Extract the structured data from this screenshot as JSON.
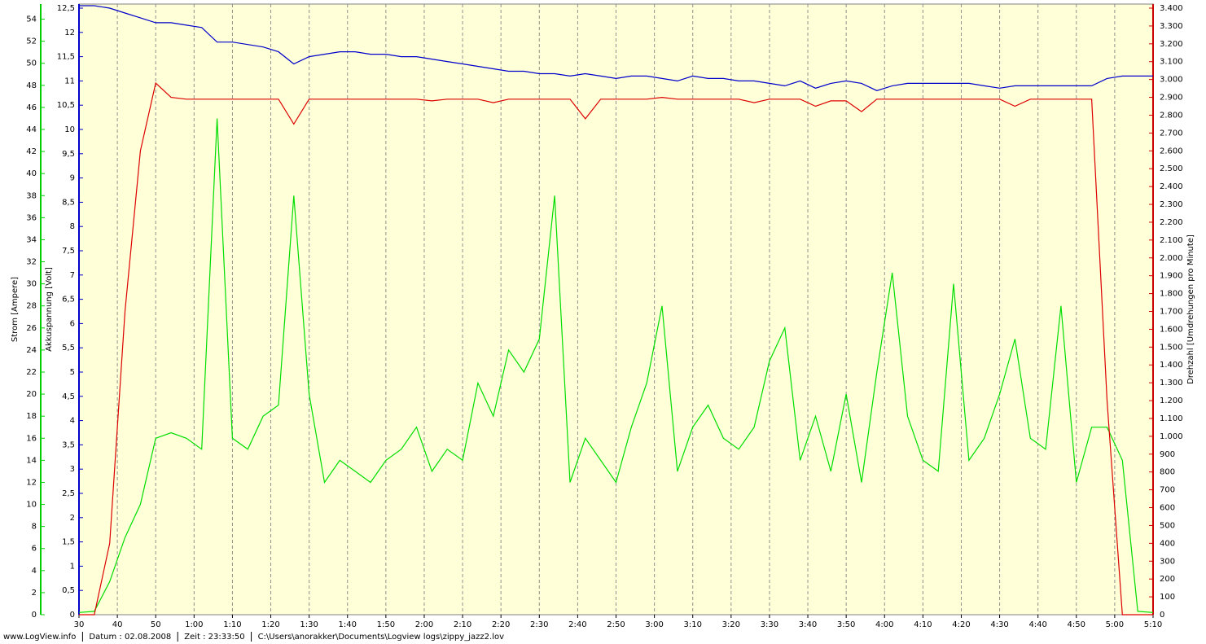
{
  "chart_data": {
    "type": "line",
    "x": [
      30,
      34,
      38,
      42,
      46,
      50,
      54,
      58,
      62,
      66,
      70,
      74,
      78,
      82,
      86,
      90,
      94,
      98,
      102,
      106,
      110,
      114,
      118,
      122,
      126,
      130,
      134,
      138,
      142,
      146,
      150,
      154,
      158,
      162,
      166,
      170,
      174,
      178,
      182,
      186,
      190,
      194,
      198,
      202,
      206,
      210,
      214,
      218,
      222,
      226,
      230,
      234,
      238,
      242,
      246,
      250,
      254,
      258,
      262,
      266,
      270,
      274,
      278,
      282,
      286,
      290,
      294,
      298,
      302,
      306,
      310
    ],
    "xlim": [
      30,
      310
    ],
    "xticks": [
      30,
      40,
      50,
      {
        "value": 60,
        "label": "1:00"
      },
      {
        "value": 70,
        "label": "1:10"
      },
      {
        "value": 80,
        "label": "1:20"
      },
      {
        "value": 90,
        "label": "1:30"
      },
      {
        "value": 100,
        "label": "1:40"
      },
      {
        "value": 110,
        "label": "1:50"
      },
      {
        "value": 120,
        "label": "2:00"
      },
      {
        "value": 130,
        "label": "2:10"
      },
      {
        "value": 140,
        "label": "2:20"
      },
      {
        "value": 150,
        "label": "2:30"
      },
      {
        "value": 160,
        "label": "2:40"
      },
      {
        "value": 170,
        "label": "2:50"
      },
      {
        "value": 180,
        "label": "3:00"
      },
      {
        "value": 190,
        "label": "3:10"
      },
      {
        "value": 200,
        "label": "3:20"
      },
      {
        "value": 210,
        "label": "3:30"
      },
      {
        "value": 220,
        "label": "3:40"
      },
      {
        "value": 230,
        "label": "3:50"
      },
      {
        "value": 240,
        "label": "4:00"
      },
      {
        "value": 250,
        "label": "4:10"
      },
      {
        "value": 260,
        "label": "4:20"
      },
      {
        "value": 270,
        "label": "4:30"
      },
      {
        "value": 280,
        "label": "4:40"
      },
      {
        "value": 290,
        "label": "4:50"
      },
      {
        "value": 300,
        "label": "5:00"
      },
      {
        "value": 310,
        "label": "5:10"
      }
    ],
    "y_label": "Akkuspannung [Volt]",
    "ylim": [
      0,
      12.5
    ],
    "yticks": [
      0,
      {
        "value": 0.5,
        "label": "0,5"
      },
      1,
      {
        "value": 1.5,
        "label": "1,5"
      },
      2,
      {
        "value": 2.5,
        "label": "2,5"
      },
      3,
      {
        "value": 3.5,
        "label": "3,5"
      },
      4,
      {
        "value": 4.5,
        "label": "4,5"
      },
      5,
      {
        "value": 5.5,
        "label": "5,5"
      },
      6,
      {
        "value": 6.5,
        "label": "6,5"
      },
      7,
      {
        "value": 7.5,
        "label": "7,5"
      },
      8,
      {
        "value": 8.5,
        "label": "8,5"
      },
      9,
      {
        "value": 9.5,
        "label": "9,5"
      },
      10,
      {
        "value": 10.5,
        "label": "10,5"
      },
      11,
      {
        "value": 11.5,
        "label": "11,5"
      },
      12,
      {
        "value": 12.5,
        "label": "12,5"
      }
    ],
    "y2_label": "Drehzahl [Umdrehungen pro Minute]",
    "y2lim": [
      0,
      3400
    ],
    "y2ticks": [
      0,
      100,
      200,
      300,
      400,
      500,
      600,
      700,
      800,
      900,
      {
        "value": 1000,
        "label": "1.000"
      },
      {
        "value": 1100,
        "label": "1.100"
      },
      {
        "value": 1200,
        "label": "1.200"
      },
      {
        "value": 1300,
        "label": "1.300"
      },
      {
        "value": 1400,
        "label": "1.400"
      },
      {
        "value": 1500,
        "label": "1.500"
      },
      {
        "value": 1600,
        "label": "1.600"
      },
      {
        "value": 1700,
        "label": "1.700"
      },
      {
        "value": 1800,
        "label": "1.800"
      },
      {
        "value": 1900,
        "label": "1.900"
      },
      {
        "value": 2000,
        "label": "2.000"
      },
      {
        "value": 2100,
        "label": "2.100"
      },
      {
        "value": 2200,
        "label": "2.200"
      },
      {
        "value": 2300,
        "label": "2.300"
      },
      {
        "value": 2400,
        "label": "2.400"
      },
      {
        "value": 2500,
        "label": "2.500"
      },
      {
        "value": 2600,
        "label": "2.600"
      },
      {
        "value": 2700,
        "label": "2.700"
      },
      {
        "value": 2800,
        "label": "2.800"
      },
      {
        "value": 2900,
        "label": "2.900"
      },
      {
        "value": 3000,
        "label": "3.000"
      },
      {
        "value": 3100,
        "label": "3.100"
      },
      {
        "value": 3200,
        "label": "3.200"
      },
      {
        "value": 3300,
        "label": "3.300"
      },
      {
        "value": 3400,
        "label": "3.400"
      }
    ],
    "y3_label": "Strom [Ampere]",
    "y3lim": [
      0,
      55
    ],
    "y3ticks": [
      0,
      2,
      4,
      6,
      8,
      10,
      12,
      14,
      16,
      18,
      20,
      22,
      24,
      26,
      28,
      30,
      32,
      34,
      36,
      38,
      40,
      42,
      44,
      46,
      48,
      50,
      52,
      54
    ],
    "grid": true,
    "series": [
      {
        "axis": "y",
        "color": "#0000cc",
        "values": [
          12.55,
          12.55,
          12.5,
          12.4,
          12.3,
          12.2,
          12.2,
          12.15,
          12.1,
          11.8,
          11.8,
          11.75,
          11.7,
          11.6,
          11.35,
          11.5,
          11.55,
          11.6,
          11.6,
          11.55,
          11.55,
          11.5,
          11.5,
          11.45,
          11.4,
          11.35,
          11.3,
          11.25,
          11.2,
          11.2,
          11.15,
          11.15,
          11.1,
          11.15,
          11.1,
          11.05,
          11.1,
          11.1,
          11.05,
          11.0,
          11.1,
          11.05,
          11.05,
          11.0,
          11.0,
          10.95,
          10.9,
          11.0,
          10.85,
          10.95,
          11.0,
          10.95,
          10.8,
          10.9,
          10.95,
          10.95,
          10.95,
          10.95,
          10.95,
          10.9,
          10.85,
          10.9,
          10.9,
          10.9,
          10.9,
          10.9,
          10.9,
          11.05,
          11.1,
          11.1,
          11.1
        ]
      },
      {
        "axis": "y2",
        "color": "#dd0000",
        "values": [
          0,
          0,
          400,
          1700,
          2600,
          2980,
          2900,
          2890,
          2890,
          2890,
          2890,
          2890,
          2890,
          2890,
          2750,
          2890,
          2890,
          2890,
          2890,
          2890,
          2890,
          2890,
          2890,
          2880,
          2890,
          2890,
          2890,
          2870,
          2890,
          2890,
          2890,
          2890,
          2890,
          2780,
          2890,
          2890,
          2890,
          2890,
          2900,
          2890,
          2890,
          2890,
          2890,
          2890,
          2870,
          2890,
          2890,
          2890,
          2850,
          2880,
          2880,
          2820,
          2890,
          2890,
          2890,
          2890,
          2890,
          2890,
          2890,
          2890,
          2890,
          2850,
          2890,
          2890,
          2890,
          2890,
          2890,
          1200,
          0,
          0,
          0
        ]
      },
      {
        "axis": "y3",
        "color": "#00dd00",
        "values": [
          0.2,
          0.3,
          3,
          7,
          10,
          16,
          16.5,
          16,
          15,
          45,
          16,
          15,
          18,
          19,
          38,
          20,
          12,
          14,
          13,
          12,
          14,
          15,
          17,
          13,
          15,
          14,
          21,
          18,
          24,
          22,
          25,
          38,
          12,
          16,
          14,
          12,
          17,
          21,
          28,
          13,
          17,
          19,
          16,
          15,
          17,
          23,
          26,
          14,
          18,
          13,
          20,
          12,
          22,
          31,
          18,
          14,
          13,
          30,
          14,
          16,
          20,
          25,
          16,
          15,
          28,
          12,
          17,
          17,
          14,
          0.3,
          0.2
        ]
      }
    ],
    "footer": [
      "www.LogView.info",
      "Datum : 02.08.2008",
      "Zeit : 23:33:50",
      "C:\\Users\\anorakker\\Documents\\Logview logs\\zippy_jazz2.lov"
    ]
  }
}
